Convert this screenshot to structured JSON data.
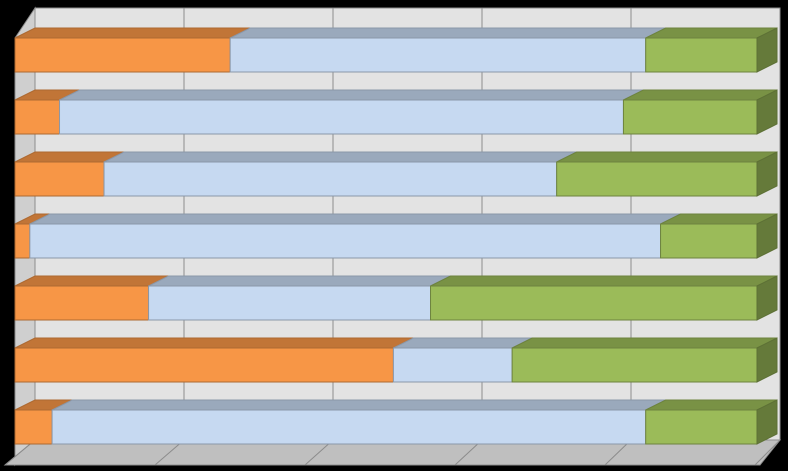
{
  "chart_data": {
    "type": "stacked-bar-100-3d",
    "categories": [
      null,
      null,
      null,
      null,
      null,
      null,
      null
    ],
    "series": [
      {
        "color": "#f79646",
        "values": [
          29,
          6,
          12,
          2,
          18,
          51,
          5
        ]
      },
      {
        "color": "#c6d9f1",
        "values": [
          56,
          76,
          61,
          85,
          38,
          16,
          80
        ]
      },
      {
        "color": "#9bbb59",
        "values": [
          15,
          18,
          27,
          13,
          44,
          33,
          15
        ]
      }
    ],
    "xlim": [
      0,
      100
    ],
    "xticks": [
      0,
      20,
      40,
      60,
      80,
      100
    ],
    "grid": true
  }
}
